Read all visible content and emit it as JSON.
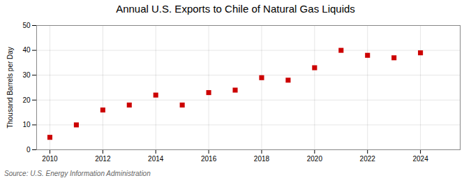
{
  "chart_data": {
    "type": "scatter",
    "title": "Annual U.S. Exports to Chile of Natural Gas Liquids",
    "ylabel": "Thousand Barrels per Day",
    "source": "Source: U.S. Energy Information Administration",
    "x": [
      2010,
      2011,
      2012,
      2013,
      2014,
      2015,
      2016,
      2017,
      2018,
      2019,
      2020,
      2021,
      2022,
      2023,
      2024
    ],
    "values": [
      5,
      10,
      16,
      18,
      22,
      18,
      23,
      24,
      29,
      28,
      33,
      40,
      38,
      37,
      39
    ],
    "color": "#cc0000",
    "marker": "square",
    "xlim": [
      2009.5,
      2025.5
    ],
    "xticks": [
      2010,
      2012,
      2014,
      2016,
      2018,
      2020,
      2022,
      2024
    ],
    "ylim": [
      0,
      50
    ],
    "yticks": [
      0,
      10,
      20,
      30,
      40,
      50
    ],
    "grid": true
  }
}
